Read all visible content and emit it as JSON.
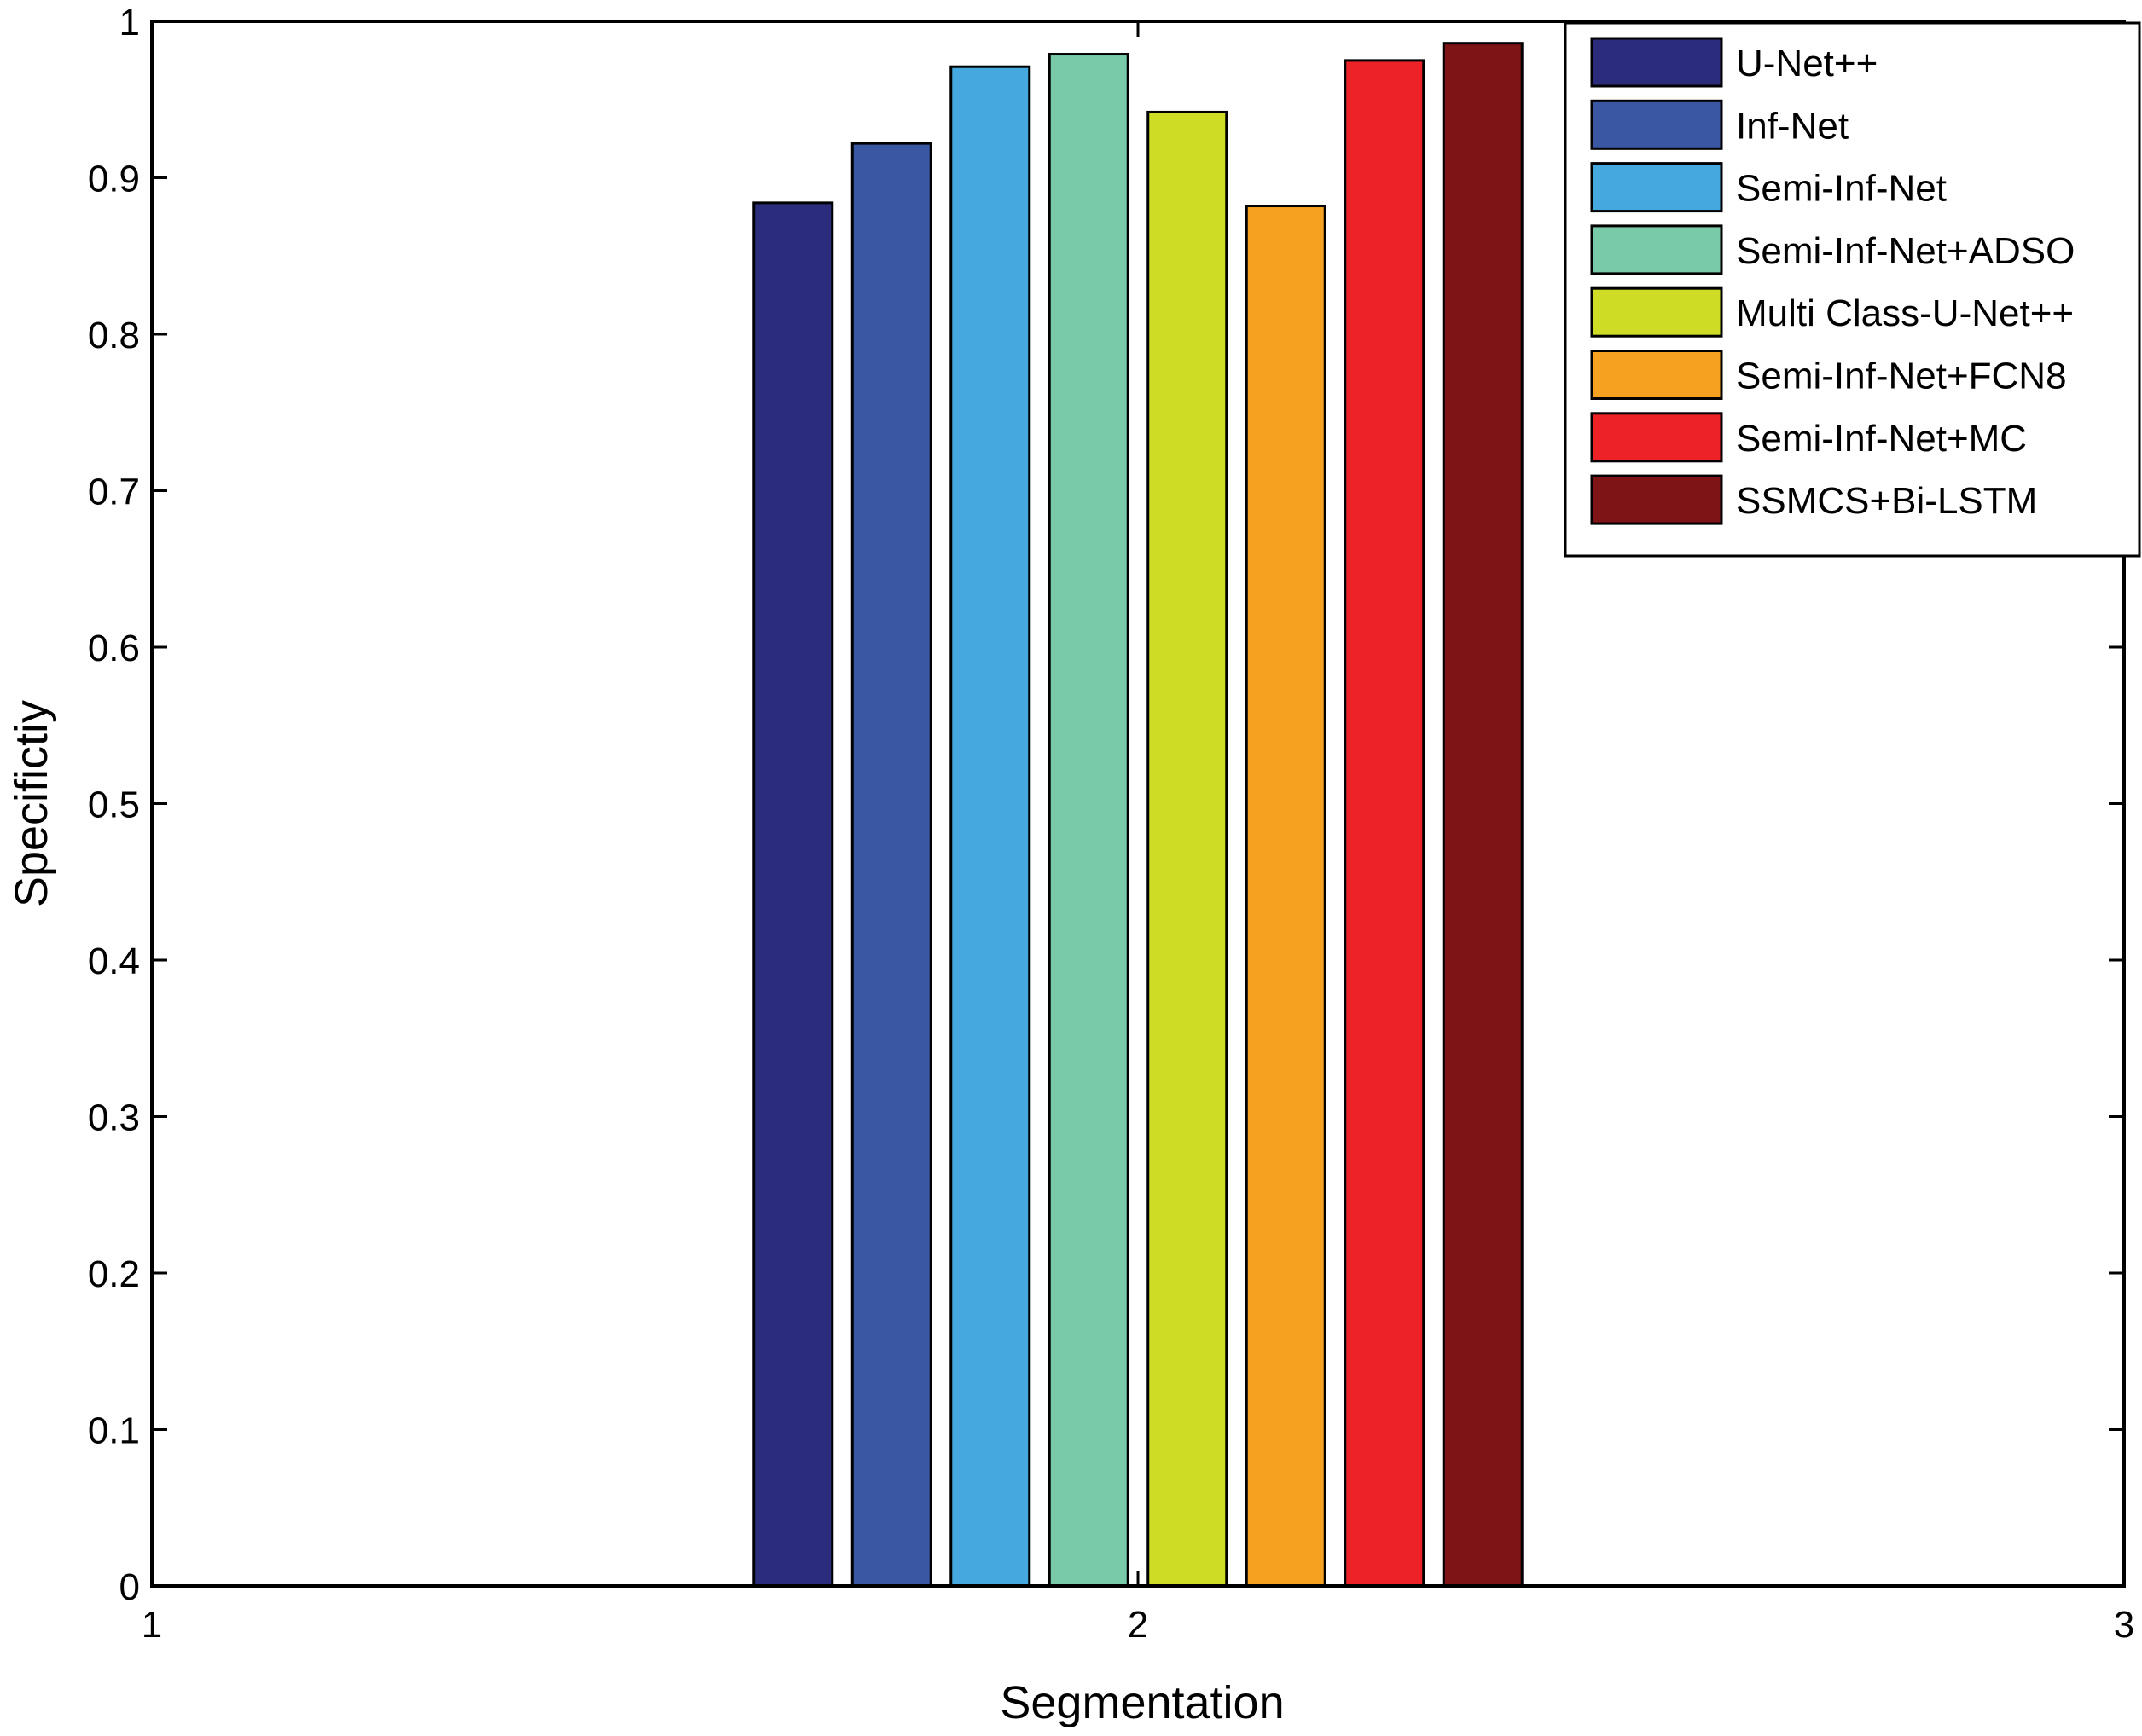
{
  "chart_data": {
    "type": "bar",
    "xlabel": "Segmentation",
    "ylabel": "Specifictiy",
    "x_ticks": [
      1,
      2,
      3
    ],
    "xlim": [
      1,
      3
    ],
    "y_ticks": [
      "0",
      "0.1",
      "0.2",
      "0.3",
      "0.4",
      "0.5",
      "0.6",
      "0.7",
      "0.8",
      "0.9",
      "1"
    ],
    "ylim": [
      0,
      1
    ],
    "group_x": 2,
    "legend_position": "top-right",
    "grid": false,
    "series": [
      {
        "name": "U-Net++",
        "value": 0.884,
        "color": "#2b2d7c"
      },
      {
        "name": "Inf-Net",
        "value": 0.922,
        "color": "#3a57a4"
      },
      {
        "name": "Semi-Inf-Net",
        "value": 0.971,
        "color": "#45a8de"
      },
      {
        "name": "Semi-Inf-Net+ADSO",
        "value": 0.979,
        "color": "#79caa8"
      },
      {
        "name": "Multi Class-U-Net++",
        "value": 0.942,
        "color": "#cfdc25"
      },
      {
        "name": "Semi-Inf-Net+FCN8",
        "value": 0.882,
        "color": "#f6a11f"
      },
      {
        "name": "Semi-Inf-Net+MC",
        "value": 0.975,
        "color": "#ec2226"
      },
      {
        "name": "SSMCS+Bi-LSTM",
        "value": 0.986,
        "color": "#7e1416"
      }
    ]
  }
}
